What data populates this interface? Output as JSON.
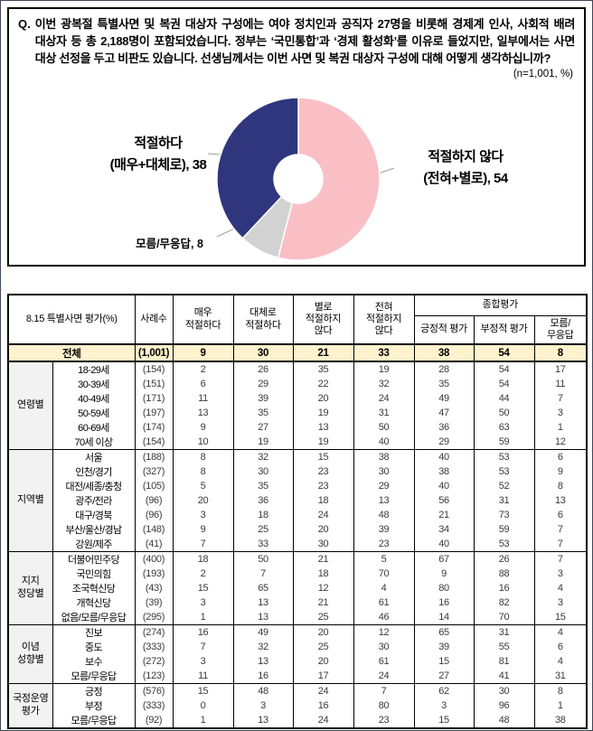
{
  "question": {
    "prefix": "Q.",
    "text": "이번 광복절 특별사면 및 복권 대상자 구성에는 여야 정치인과 공직자 27명을 비롯해 경제계 인사, 사회적 배려 대상자 등 총 2,188명이 포함되었습니다. 정부는 ‘국민통합’과 ‘경제 활성화’를 이유로 들었지만, 일부에서는 사면 대상 선정을 두고 비판도 있습니다. 선생님께서는 이번 사면 및 복권 대상자 구성에 대해 어떻게 생각하십니까?",
    "sample_note": "(n=1,001, %)"
  },
  "chart_data": [
    {
      "type": "pie",
      "donut": true,
      "start_angle": "12-oclock",
      "direction": "clockwise",
      "segments": [
        {
          "label": "적절하지 않다 (전혀+별로)",
          "value": 54,
          "color": "#F9BFC5"
        },
        {
          "label": "모름/무응답",
          "value": 8,
          "color": "#D2D2D2"
        },
        {
          "label": "적절하다 (매우+대체로)",
          "value": 38,
          "color": "#2F367E"
        }
      ],
      "callouts": {
        "approve": {
          "line1": "적절하다",
          "line2": "(매우+대체로), 38"
        },
        "disapprove": {
          "line1": "적절하지 않다",
          "line2": "(전혀+별로), 54"
        },
        "unknown": {
          "line1": "모름/무응답, 8"
        }
      }
    },
    {
      "type": "table",
      "corner_label": "8.15 특별사면 평가(%)",
      "case_col": "사례수",
      "response_cols": [
        "매우\n적절하다",
        "대체로\n적절하다",
        "별로\n적절하지\n않다",
        "전혀\n적절하지\n않다"
      ],
      "summary_group": "종합평가",
      "summary_cols": [
        "긍정적 평가",
        "부정적 평가",
        "모름/\n무응답"
      ],
      "total_row": {
        "label": "전체",
        "n": "(1,001)",
        "values": [
          9,
          30,
          21,
          33,
          38,
          54,
          8
        ]
      },
      "groups": [
        {
          "name": "연령별",
          "rows": [
            {
              "label": "18-29세",
              "n": "(154)",
              "values": [
                2,
                26,
                35,
                19,
                28,
                54,
                17
              ]
            },
            {
              "label": "30-39세",
              "n": "(151)",
              "values": [
                6,
                29,
                22,
                32,
                35,
                54,
                11
              ]
            },
            {
              "label": "40-49세",
              "n": "(171)",
              "values": [
                11,
                39,
                20,
                24,
                49,
                44,
                7
              ]
            },
            {
              "label": "50-59세",
              "n": "(197)",
              "values": [
                13,
                35,
                19,
                31,
                47,
                50,
                3
              ]
            },
            {
              "label": "60-69세",
              "n": "(174)",
              "values": [
                9,
                27,
                13,
                50,
                36,
                63,
                1
              ]
            },
            {
              "label": "70세 이상",
              "n": "(154)",
              "values": [
                10,
                19,
                19,
                40,
                29,
                59,
                12
              ]
            }
          ]
        },
        {
          "name": "지역별",
          "rows": [
            {
              "label": "서울",
              "n": "(188)",
              "values": [
                8,
                32,
                15,
                38,
                40,
                53,
                6
              ]
            },
            {
              "label": "인천/경기",
              "n": "(327)",
              "values": [
                8,
                30,
                23,
                30,
                38,
                53,
                9
              ]
            },
            {
              "label": "대전/세종/충청",
              "n": "(105)",
              "values": [
                5,
                35,
                23,
                29,
                40,
                52,
                8
              ]
            },
            {
              "label": "광주/전라",
              "n": "(96)",
              "values": [
                20,
                36,
                18,
                13,
                56,
                31,
                13
              ]
            },
            {
              "label": "대구/경북",
              "n": "(96)",
              "values": [
                3,
                18,
                24,
                48,
                21,
                73,
                6
              ]
            },
            {
              "label": "부산/울산/경남",
              "n": "(148)",
              "values": [
                9,
                25,
                20,
                39,
                34,
                59,
                7
              ]
            },
            {
              "label": "강원/제주",
              "n": "(41)",
              "values": [
                7,
                33,
                30,
                23,
                40,
                53,
                7
              ]
            }
          ]
        },
        {
          "name": "지지\n정당별",
          "rows": [
            {
              "label": "더불어민주당",
              "n": "(400)",
              "values": [
                18,
                50,
                21,
                5,
                67,
                26,
                7
              ]
            },
            {
              "label": "국민의힘",
              "n": "(193)",
              "values": [
                2,
                7,
                18,
                70,
                9,
                88,
                3
              ]
            },
            {
              "label": "조국혁신당",
              "n": "(43)",
              "values": [
                15,
                65,
                12,
                4,
                80,
                16,
                4
              ]
            },
            {
              "label": "개혁신당",
              "n": "(39)",
              "values": [
                3,
                13,
                21,
                61,
                16,
                82,
                3
              ]
            },
            {
              "label": "없음/모름/무응답",
              "n": "(295)",
              "values": [
                1,
                13,
                25,
                46,
                14,
                70,
                15
              ]
            }
          ]
        },
        {
          "name": "이념\n성향별",
          "rows": [
            {
              "label": "진보",
              "n": "(274)",
              "values": [
                16,
                49,
                20,
                12,
                65,
                31,
                4
              ]
            },
            {
              "label": "중도",
              "n": "(333)",
              "values": [
                7,
                32,
                25,
                30,
                39,
                55,
                6
              ]
            },
            {
              "label": "보수",
              "n": "(272)",
              "values": [
                3,
                13,
                20,
                61,
                15,
                81,
                4
              ]
            },
            {
              "label": "모름/무응답",
              "n": "(123)",
              "values": [
                11,
                16,
                17,
                24,
                27,
                41,
                31
              ]
            }
          ]
        },
        {
          "name": "국정운영\n평가",
          "rows": [
            {
              "label": "긍정",
              "n": "(576)",
              "values": [
                15,
                48,
                24,
                7,
                62,
                30,
                8
              ]
            },
            {
              "label": "부정",
              "n": "(333)",
              "values": [
                0,
                3,
                16,
                80,
                3,
                96,
                1
              ]
            },
            {
              "label": "모름/무응답",
              "n": "(92)",
              "values": [
                1,
                13,
                24,
                23,
                15,
                48,
                38
              ]
            }
          ]
        }
      ]
    }
  ],
  "colors": {
    "approve_navy": "#2F367E",
    "disapprove_pink": "#F9BFC5",
    "unknown_gray": "#D2D2D2",
    "total_row_yellow": "#FFF2CC",
    "category_gray": "#F2F2F2"
  }
}
